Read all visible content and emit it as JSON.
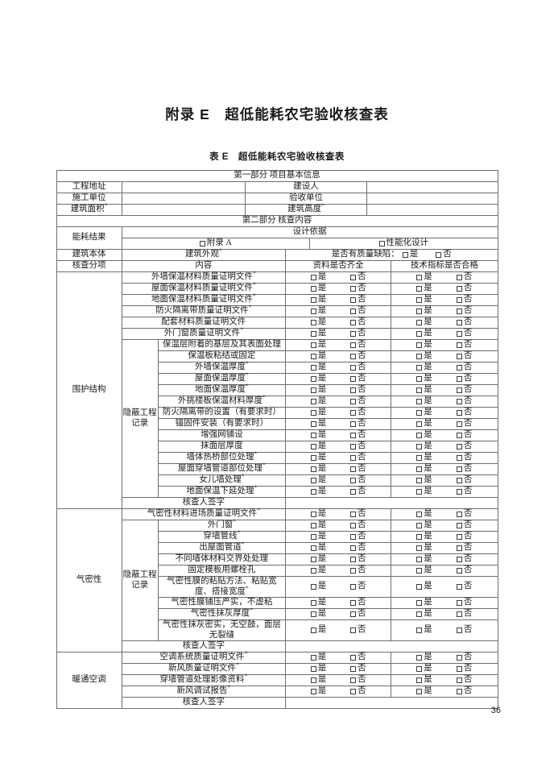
{
  "title": "附录 E　超低能耗农宅验收核查表",
  "table_caption": "表 E　超低能耗农宅验收核查表",
  "page_number": "36",
  "checkbox": {
    "yes": "是",
    "no": "否"
  },
  "part1": {
    "header": "第一部分 项目基本信息",
    "rows": [
      {
        "label1": "工程地址",
        "value1": "",
        "label2": "建设人",
        "value2": ""
      },
      {
        "label1": "施工单位",
        "value1": "",
        "label2": "验收单位",
        "value2": ""
      },
      {
        "label1": "建筑面积*",
        "value1": "",
        "label2": "建筑高度*",
        "value2": ""
      }
    ]
  },
  "part2": {
    "header": "第二部分 核查内容",
    "energy_row": {
      "label": "能耗结果",
      "basis": "设计依据",
      "options": [
        "附录 A",
        "性能化设计"
      ]
    },
    "building_row": {
      "label": "建筑本体",
      "appearance": "建筑外观*",
      "defect_label": "是否有质量缺陷："
    },
    "columns": [
      "核查分项",
      "内容",
      "资料是否齐全",
      "技术指标是否合格"
    ],
    "sign_label": "核查人签字",
    "sections": [
      {
        "name": "围护结构",
        "items": [
          "外墙保温材料质量证明文件*",
          "屋面保温材料质量证明文件*",
          "地面保温材料质量证明文件*",
          "防火隔离带质量证明文件*",
          "配套材料质量证明文件",
          "外门窗质量证明文件*"
        ],
        "hidden_label": "隐蔽工程记录",
        "hidden_items": [
          "保温层附着的基层及其表面处理",
          "保温板粘结或固定",
          "外墙保温厚度*",
          "屋面保温厚度*",
          "地面保温厚度*",
          "外挑楼板保温材料厚度*",
          "防火隔离带的设置（有要求时）",
          "锚固件安装（有要求时）",
          "增强网铺设",
          "抹面层厚度",
          "墙体热桥部位处理*",
          "屋面穿墙管道部位处理*",
          "女儿墙处理*",
          "地面保温下延处理*"
        ]
      },
      {
        "name": "气密性",
        "items": [
          "气密性材料进场质量证明文件*"
        ],
        "hidden_label": "隐蔽工程记录",
        "hidden_items": [
          "外门窗*",
          "穿墙管线*",
          "出屋面管道*",
          "不同墙体材料交界处处理",
          "固定模板用螺栓孔",
          "气密性膜的粘贴方法、粘贴宽度、搭接宽度*",
          "气密性膜铺压严实，不虚粘",
          "气密性抹灰厚度*",
          "气密性抹灰密实，无空鼓，面层无裂缝"
        ]
      },
      {
        "name": "暖通空调",
        "items": [
          "空调系统质量证明文件*",
          "新风质量证明文件*",
          "穿墙管道处理影像资料*",
          "新风调试报告*"
        ],
        "hidden_label": "",
        "hidden_items": []
      }
    ]
  }
}
